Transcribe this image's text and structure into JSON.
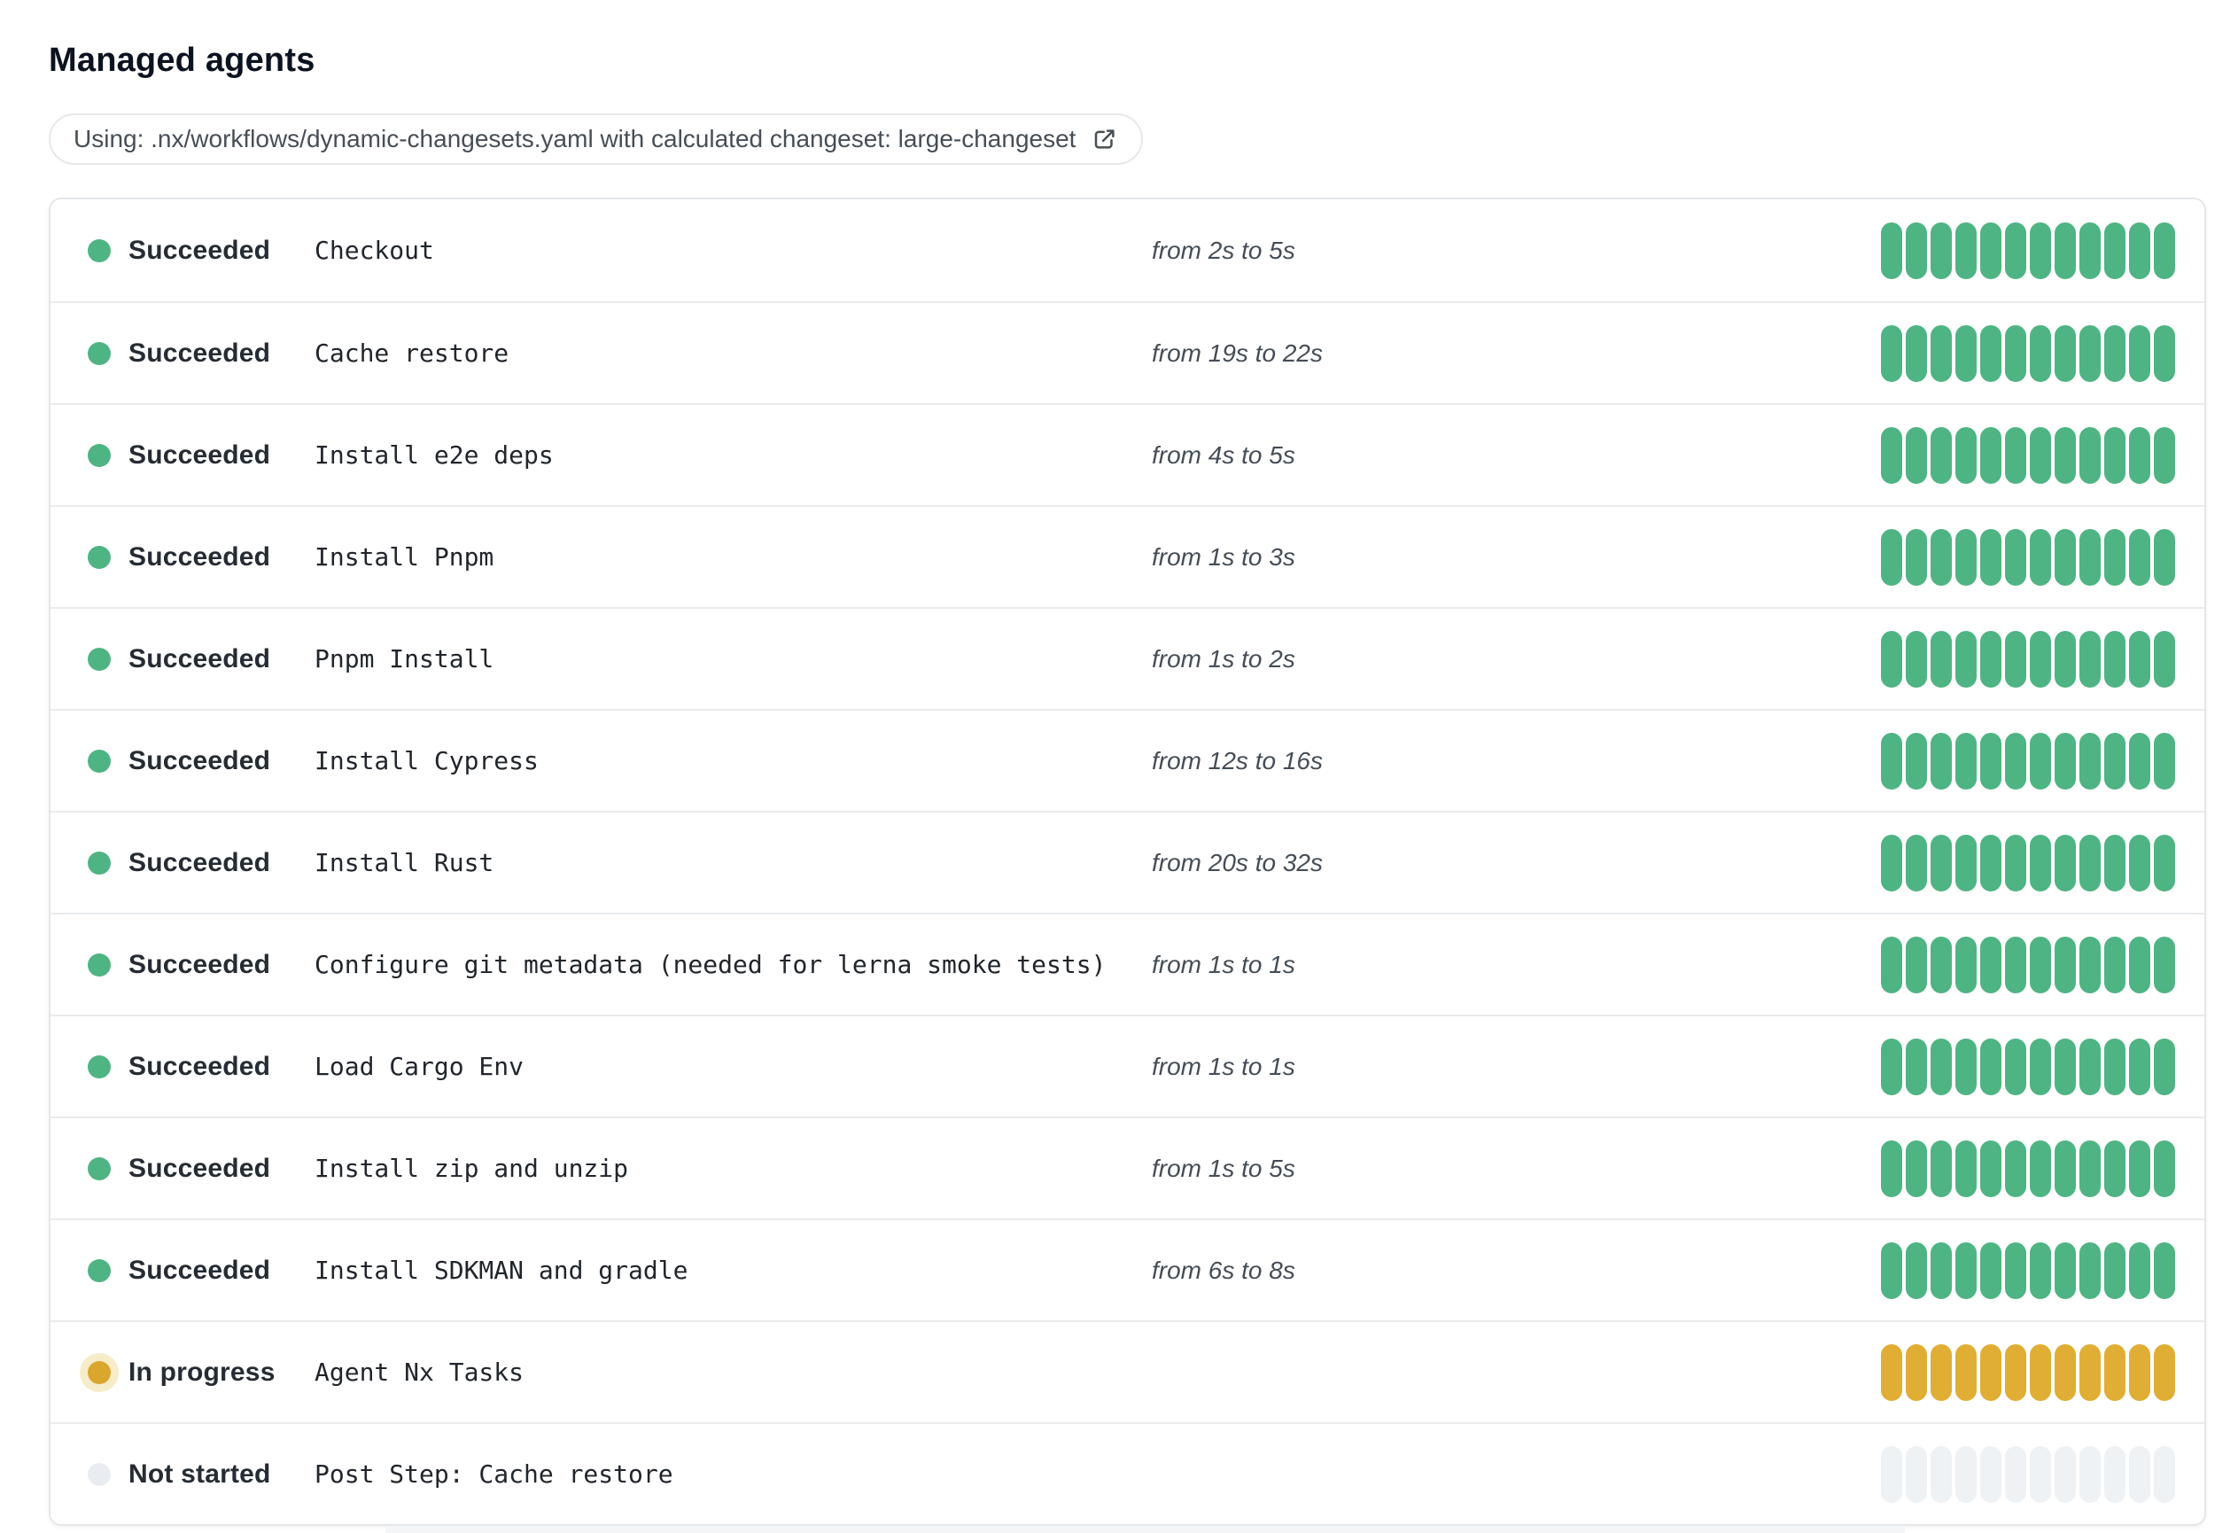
{
  "page": {
    "title": "Managed agents",
    "workflow_banner": {
      "text": "Using: .nx/workflows/dynamic-changesets.yaml with calculated changeset: large-changeset",
      "icon": "external-link-icon"
    }
  },
  "agents": {
    "segments_per_row": 12,
    "rows": [
      {
        "status": "succeeded",
        "status_label": "Succeeded",
        "name": "Checkout",
        "duration": "from 2s to 5s"
      },
      {
        "status": "succeeded",
        "status_label": "Succeeded",
        "name": "Cache restore",
        "duration": "from 19s to 22s"
      },
      {
        "status": "succeeded",
        "status_label": "Succeeded",
        "name": "Install e2e deps",
        "duration": "from 4s to 5s"
      },
      {
        "status": "succeeded",
        "status_label": "Succeeded",
        "name": "Install Pnpm",
        "duration": "from 1s to 3s"
      },
      {
        "status": "succeeded",
        "status_label": "Succeeded",
        "name": "Pnpm Install",
        "duration": "from 1s to 2s"
      },
      {
        "status": "succeeded",
        "status_label": "Succeeded",
        "name": "Install Cypress",
        "duration": "from 12s to 16s"
      },
      {
        "status": "succeeded",
        "status_label": "Succeeded",
        "name": "Install Rust",
        "duration": "from 20s to 32s"
      },
      {
        "status": "succeeded",
        "status_label": "Succeeded",
        "name": "Configure git metadata (needed for lerna smoke tests)",
        "duration": "from 1s to 1s"
      },
      {
        "status": "succeeded",
        "status_label": "Succeeded",
        "name": "Load Cargo Env",
        "duration": "from 1s to 1s"
      },
      {
        "status": "succeeded",
        "status_label": "Succeeded",
        "name": "Install zip and unzip",
        "duration": "from 1s to 5s"
      },
      {
        "status": "succeeded",
        "status_label": "Succeeded",
        "name": "Install SDKMAN and gradle",
        "duration": "from 6s to 8s"
      },
      {
        "status": "in_progress",
        "status_label": "In progress",
        "name": "Agent Nx Tasks",
        "duration": ""
      },
      {
        "status": "not_started",
        "status_label": "Not started",
        "name": "Post Step: Cache restore",
        "duration": ""
      }
    ]
  },
  "colors": {
    "succeeded": "#4fb483",
    "in_progress_bar": "#e0ae34",
    "in_progress_dot": "#d9a62e",
    "in_progress_halo": "#f7ecc9",
    "not_started_bar": "#eef2f5",
    "not_started_dot": "#e9edf1",
    "card_border": "#e4e7ea",
    "row_divider": "#e9ebee",
    "text_primary": "#262c33",
    "text_secondary": "#454d56"
  }
}
